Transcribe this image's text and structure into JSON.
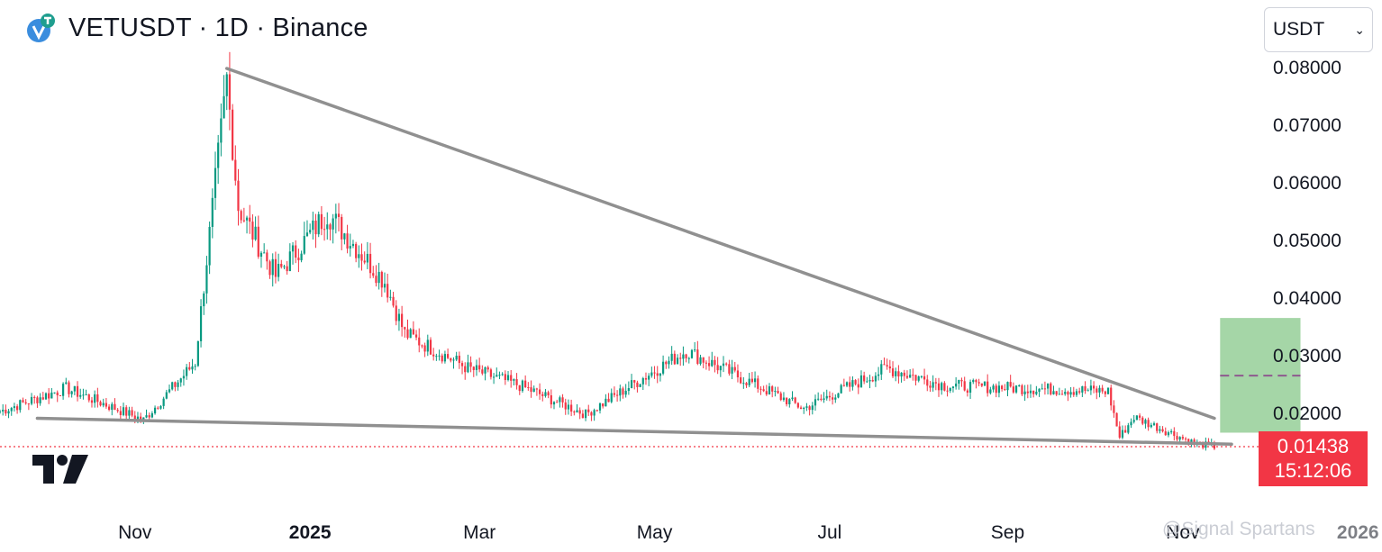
{
  "header": {
    "title": "VETUSDT · 1D · Binance",
    "logo_icon": "vechain-logo-icon"
  },
  "currency_select": {
    "value": "USDT"
  },
  "price_badge": {
    "price": "0.01438",
    "countdown": "15:12:06",
    "color": "#f23645"
  },
  "watermark": {
    "text": "@Signal Spartans"
  },
  "colors": {
    "up": "#089981",
    "down": "#f23645",
    "trendline": "#909090",
    "target_zone": "#a5d6a7"
  },
  "chart_data": {
    "type": "candlestick",
    "symbol": "VETUSDT",
    "interval": "1D",
    "exchange": "Binance",
    "y_axis": {
      "ticks": [
        "0.08000",
        "0.07000",
        "0.06000",
        "0.05000",
        "0.04000",
        "0.03000",
        "0.02000"
      ],
      "ylim": [
        0.0045,
        0.0815
      ]
    },
    "x_axis": {
      "ticks": [
        "Nov",
        "2025",
        "Mar",
        "May",
        "Jul",
        "Sep",
        "Nov",
        "2026"
      ],
      "range": [
        "2024-09-15",
        "2026-01-05"
      ]
    },
    "last_price": 0.01438,
    "key_points": [
      {
        "date": "2024-09-15",
        "close": 0.0205
      },
      {
        "date": "2024-10-08",
        "close": 0.0245
      },
      {
        "date": "2024-11-04",
        "close": 0.019
      },
      {
        "date": "2024-11-22",
        "close": 0.029
      },
      {
        "date": "2024-12-03",
        "close": 0.078
      },
      {
        "date": "2024-12-07",
        "close": 0.056
      },
      {
        "date": "2024-12-20",
        "close": 0.044
      },
      {
        "date": "2024-12-30",
        "close": 0.05
      },
      {
        "date": "2025-01-07",
        "close": 0.055
      },
      {
        "date": "2025-01-27",
        "close": 0.043
      },
      {
        "date": "2025-02-03",
        "close": 0.034
      },
      {
        "date": "2025-02-25",
        "close": 0.028
      },
      {
        "date": "2025-03-15",
        "close": 0.025
      },
      {
        "date": "2025-04-07",
        "close": 0.02
      },
      {
        "date": "2025-05-12",
        "close": 0.031
      },
      {
        "date": "2025-06-22",
        "close": 0.021
      },
      {
        "date": "2025-07-21",
        "close": 0.028
      },
      {
        "date": "2025-08-10",
        "close": 0.025
      },
      {
        "date": "2025-10-06",
        "close": 0.024
      },
      {
        "date": "2025-10-10",
        "close": 0.016
      },
      {
        "date": "2025-10-15",
        "close": 0.0195
      },
      {
        "date": "2025-11-05",
        "close": 0.015
      },
      {
        "date": "2025-11-12",
        "close": 0.01438
      }
    ],
    "annotations": {
      "upper_trendline": [
        {
          "date": "2024-12-03",
          "price": 0.08
        },
        {
          "date": "2025-11-12",
          "price": 0.0193
        }
      ],
      "lower_trendline": [
        {
          "date": "2024-09-28",
          "price": 0.0193
        },
        {
          "date": "2025-11-18",
          "price": 0.0148
        }
      ],
      "target_box": {
        "from": "2025-11-14",
        "to": "2025-12-12",
        "price_low": 0.0168,
        "price_high": 0.0367,
        "mid": 0.0267
      },
      "last_price_line": 0.01438
    }
  }
}
